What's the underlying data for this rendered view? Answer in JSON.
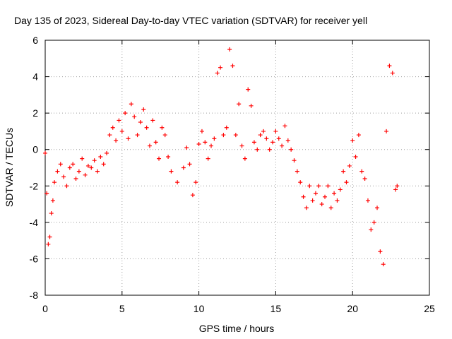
{
  "chart_data": {
    "type": "scatter",
    "title": "Day 135 of 2023, Sidereal Day-to-day VTEC variation (SDTVAR) for receiver yell",
    "xlabel": "GPS time / hours",
    "ylabel": "SDTVAR / TECUs",
    "xlim": [
      0,
      25
    ],
    "ylim": [
      -8,
      6
    ],
    "xticks": [
      0,
      5,
      10,
      15,
      20,
      25
    ],
    "xtick_labels": [
      "0",
      "5",
      "10",
      "15",
      "20",
      "25"
    ],
    "yticks": [
      -8,
      -6,
      -4,
      -2,
      0,
      2,
      4,
      6
    ],
    "ytick_labels": [
      "-8",
      "-6",
      "-4",
      "-2",
      "0",
      "2",
      "4",
      "6"
    ],
    "grid": true,
    "marker": "+",
    "series": [
      {
        "name": "SDTVAR",
        "color": "#ff0000",
        "x": [
          0.0,
          0.1,
          0.2,
          0.3,
          0.4,
          0.5,
          0.6,
          0.8,
          1.0,
          1.2,
          1.4,
          1.6,
          1.8,
          2.0,
          2.2,
          2.4,
          2.6,
          2.8,
          3.0,
          3.2,
          3.4,
          3.6,
          3.8,
          4.0,
          4.2,
          4.4,
          4.6,
          4.8,
          5.0,
          5.2,
          5.4,
          5.6,
          5.8,
          6.0,
          6.2,
          6.4,
          6.6,
          6.8,
          7.0,
          7.2,
          7.4,
          7.6,
          7.8,
          8.0,
          8.2,
          8.6,
          9.0,
          9.2,
          9.4,
          9.6,
          9.8,
          10.0,
          10.2,
          10.4,
          10.6,
          10.8,
          11.0,
          11.2,
          11.4,
          11.6,
          11.8,
          12.0,
          12.2,
          12.4,
          12.6,
          12.8,
          13.0,
          13.2,
          13.4,
          13.6,
          13.8,
          14.0,
          14.2,
          14.4,
          14.6,
          14.8,
          15.0,
          15.2,
          15.4,
          15.6,
          15.8,
          16.0,
          16.2,
          16.4,
          16.6,
          16.8,
          17.0,
          17.2,
          17.4,
          17.6,
          17.8,
          18.0,
          18.2,
          18.4,
          18.6,
          18.8,
          19.0,
          19.2,
          19.4,
          19.6,
          19.8,
          20.0,
          20.2,
          20.4,
          20.6,
          20.8,
          21.0,
          21.2,
          21.4,
          21.6,
          21.8,
          22.0,
          22.2,
          22.4,
          22.6,
          22.8,
          22.9
        ],
        "y": [
          -0.2,
          -2.4,
          -5.2,
          -4.8,
          -3.5,
          -2.8,
          -1.8,
          -1.2,
          -0.8,
          -1.5,
          -2.0,
          -1.0,
          -0.8,
          -1.6,
          -1.2,
          -0.5,
          -1.4,
          -0.9,
          -1.0,
          -0.6,
          -1.2,
          -0.4,
          -0.8,
          -0.2,
          0.8,
          1.2,
          0.5,
          1.6,
          1.0,
          2.0,
          0.6,
          2.5,
          1.8,
          0.8,
          1.5,
          2.2,
          1.2,
          0.2,
          1.6,
          0.4,
          -0.5,
          1.2,
          0.8,
          -0.4,
          -1.2,
          -1.8,
          -1.0,
          0.1,
          -0.8,
          -2.5,
          -1.8,
          0.3,
          1.0,
          0.4,
          -0.5,
          0.2,
          0.6,
          4.2,
          4.5,
          0.8,
          1.2,
          5.5,
          4.6,
          0.8,
          2.5,
          0.2,
          -0.5,
          3.3,
          2.4,
          0.4,
          0.0,
          0.8,
          1.0,
          0.6,
          0.0,
          0.4,
          1.0,
          0.6,
          0.2,
          1.3,
          0.5,
          0.0,
          -0.6,
          -1.2,
          -1.8,
          -2.6,
          -3.2,
          -2.0,
          -2.8,
          -2.4,
          -2.0,
          -3.0,
          -2.6,
          -2.0,
          -3.2,
          -2.4,
          -2.8,
          -2.2,
          -1.2,
          -1.8,
          -0.9,
          0.5,
          -0.4,
          0.8,
          -1.2,
          -1.6,
          -2.8,
          -4.4,
          -4.0,
          -3.2,
          -5.6,
          -6.3,
          1.0,
          4.6,
          4.2,
          -2.2,
          -2.0
        ]
      }
    ]
  }
}
